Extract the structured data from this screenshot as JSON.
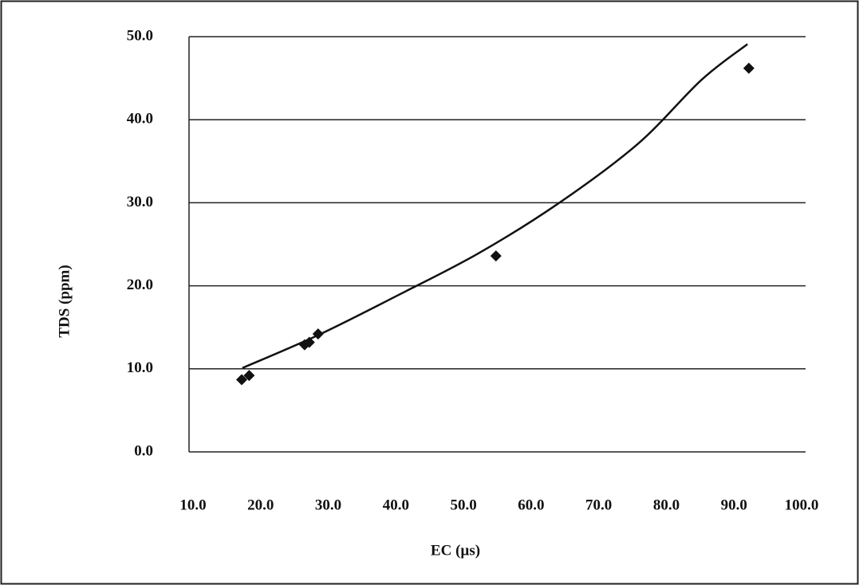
{
  "chart_data": {
    "type": "scatter",
    "x_label": "EC (µs)",
    "y_label": "TDS (ppm)",
    "series": [
      {
        "color": "#111111",
        "x": [
          17.2,
          18.3,
          26.5,
          27.2,
          28.5,
          54.8,
          92.2
        ],
        "values": [
          8.7,
          9.2,
          12.9,
          13.2,
          14.2,
          23.6,
          46.2
        ]
      }
    ],
    "trendline": {
      "color": "#111111",
      "x": [
        17.3,
        28.6,
        40.4,
        52.2,
        64,
        75.8,
        85.2,
        92
      ],
      "values": [
        10.1,
        14.1,
        18.9,
        23.9,
        29.9,
        37.1,
        44.8,
        49.1
      ]
    },
    "xlim": [
      10,
      100
    ],
    "xticks": [
      {
        "value": 10,
        "label": "10.0"
      },
      {
        "value": 20,
        "label": "20.0"
      },
      {
        "value": 30,
        "label": "30.0"
      },
      {
        "value": 40,
        "label": "40.0"
      },
      {
        "value": 50,
        "label": "50.0"
      },
      {
        "value": 60,
        "label": "60.0"
      },
      {
        "value": 70,
        "label": "70.0"
      },
      {
        "value": 80,
        "label": "80.0"
      },
      {
        "value": 90,
        "label": "90.0"
      },
      {
        "value": 100,
        "label": "100.0"
      }
    ],
    "ylim": [
      0,
      50
    ],
    "yticks": [
      {
        "value": 0,
        "label": "0.0"
      },
      {
        "value": 10,
        "label": "10.0"
      },
      {
        "value": 20,
        "label": "20.0"
      },
      {
        "value": 30,
        "label": "30.0"
      },
      {
        "value": 40,
        "label": "40.0"
      },
      {
        "value": 50,
        "label": "50.0"
      }
    ],
    "grid": true
  }
}
